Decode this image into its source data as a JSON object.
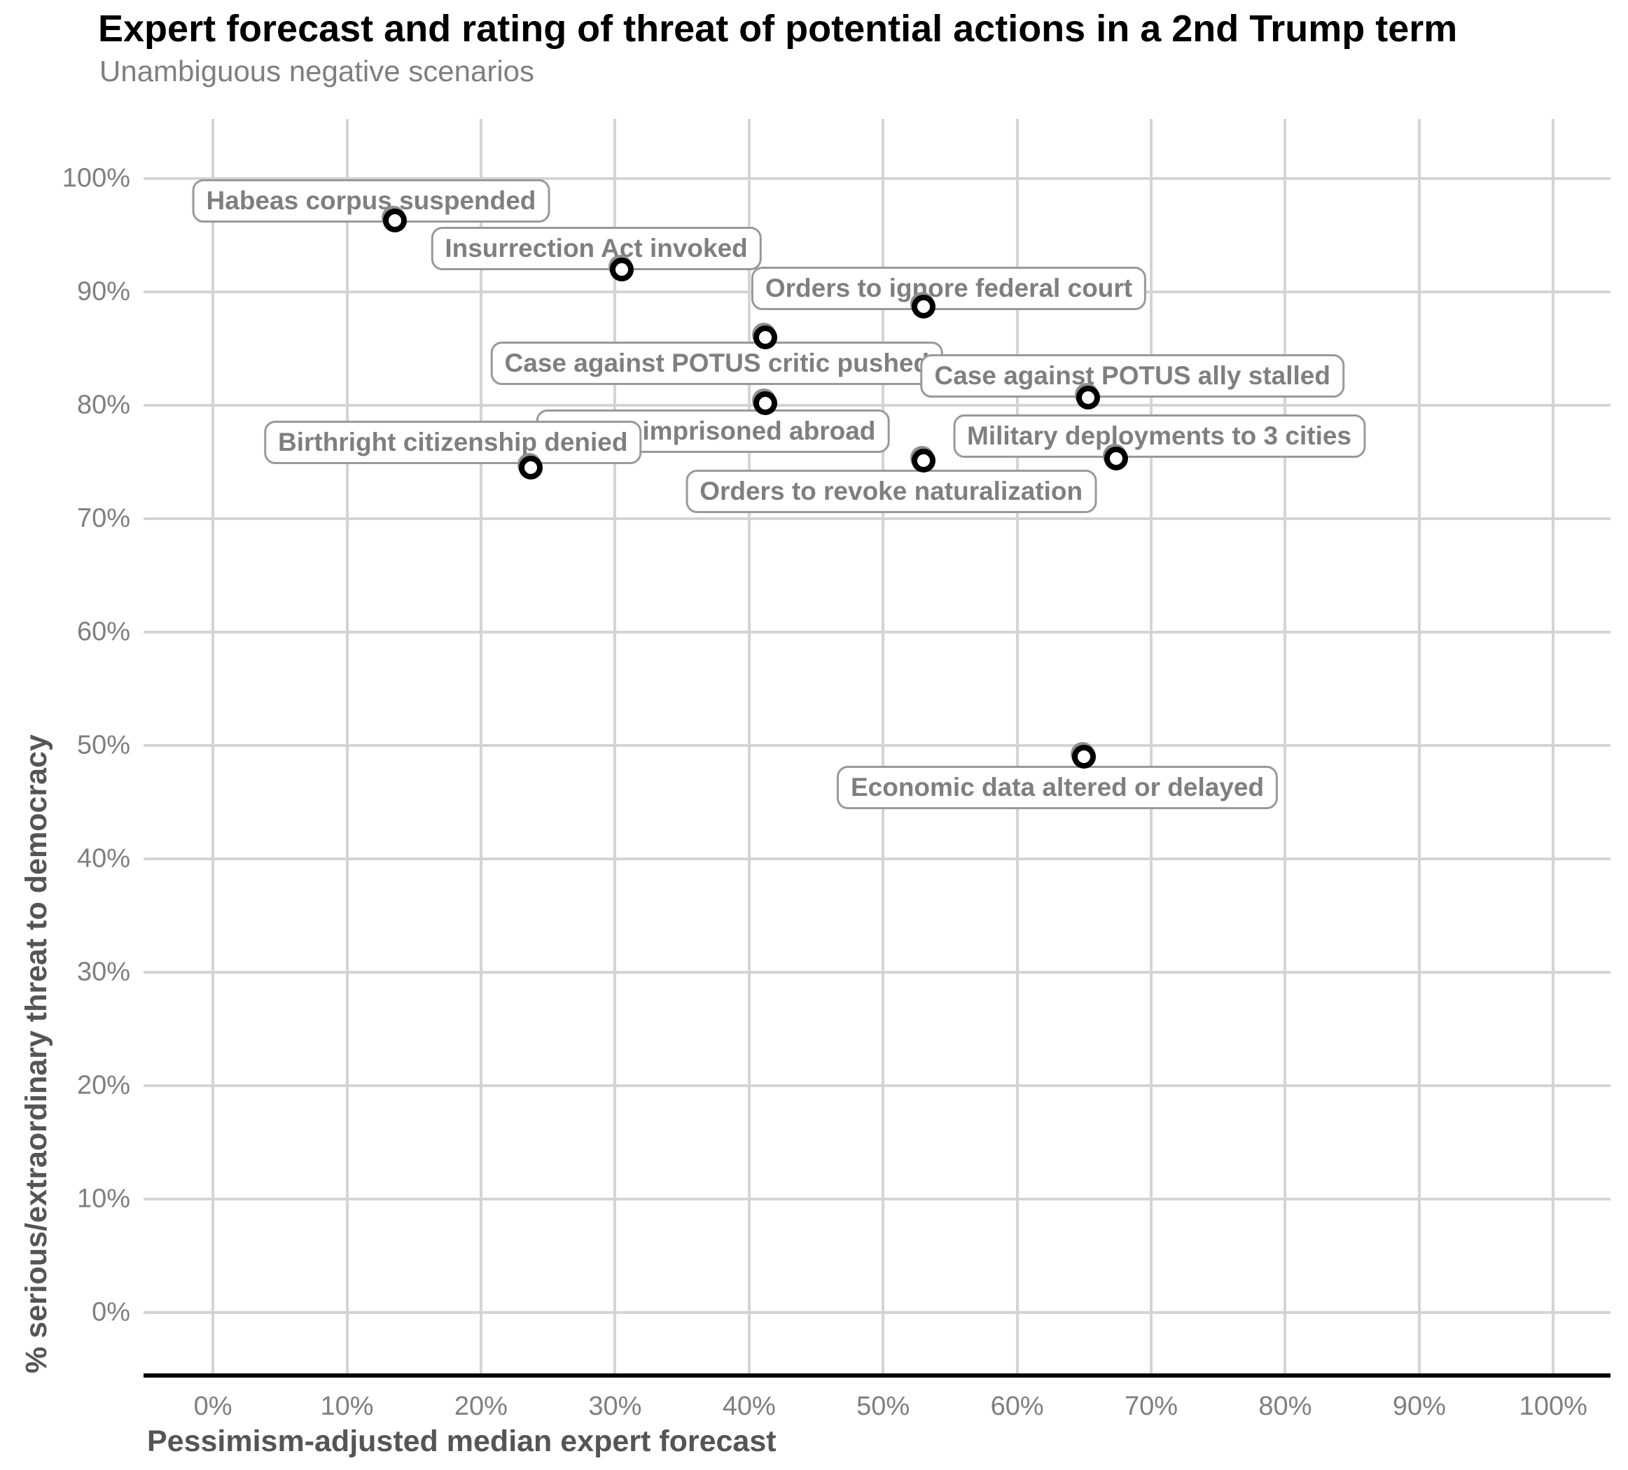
{
  "header": {
    "title": "Expert forecast and rating of threat of potential actions in a 2nd Trump term",
    "subtitle": "Unambiguous negative scenarios"
  },
  "axes": {
    "x": {
      "title": "Pessimism-adjusted median expert forecast",
      "tick_labels": [
        "0%",
        "10%",
        "20%",
        "30%",
        "40%",
        "50%",
        "60%",
        "70%",
        "80%",
        "90%",
        "100%"
      ],
      "tick_values": [
        0,
        10,
        20,
        30,
        40,
        50,
        60,
        70,
        80,
        90,
        100
      ],
      "range": [
        0,
        100
      ]
    },
    "y": {
      "title": "% serious/extraordinary threat to democracy",
      "tick_labels": [
        "0%",
        "10%",
        "20%",
        "30%",
        "40%",
        "50%",
        "60%",
        "70%",
        "80%",
        "90%",
        "100%"
      ],
      "tick_values": [
        0,
        10,
        20,
        30,
        40,
        50,
        60,
        70,
        80,
        90,
        100
      ],
      "range": [
        0,
        100
      ]
    }
  },
  "chart_data": {
    "type": "scatter",
    "title": "Expert forecast and rating of threat of potential actions in a 2nd Trump term",
    "subtitle": "Unambiguous negative scenarios",
    "xlabel": "Pessimism-adjusted median expert forecast",
    "ylabel": "% serious/extraordinary threat to democracy",
    "xlim": [
      0,
      100
    ],
    "ylim": [
      0,
      100
    ],
    "grid": true,
    "units": "percent",
    "points": [
      {
        "label": "Habeas corpus suspended",
        "x": 13.6,
        "y": 96.3,
        "label_x": 11.8,
        "label_y": 98.0
      },
      {
        "label": "Insurrection Act invoked",
        "x": 30.5,
        "y": 92.0,
        "label_x": 28.6,
        "label_y": 93.8
      },
      {
        "label": "Orders to ignore federal court",
        "x": 53.0,
        "y": 88.7,
        "label_x": 54.9,
        "label_y": 90.3
      },
      {
        "label": "Case against POTUS critic pushed",
        "x": 41.2,
        "y": 86.0,
        "label_x": 37.6,
        "label_y": 83.7
      },
      {
        "label": "Case against POTUS ally stalled",
        "x": 65.3,
        "y": 80.7,
        "label_x": 68.6,
        "label_y": 82.6
      },
      {
        "label": "Citizen imprisoned abroad",
        "x": 41.2,
        "y": 80.2,
        "label_x": 37.3,
        "label_y": 77.7
      },
      {
        "label": "Military deployments to 3 cities",
        "x": 67.4,
        "y": 75.3,
        "label_x": 70.6,
        "label_y": 77.3
      },
      {
        "label": "Birthright citizenship denied",
        "x": 23.7,
        "y": 74.5,
        "label_x": 17.9,
        "label_y": 76.7
      },
      {
        "label": "Orders to revoke naturalization",
        "x": 53.0,
        "y": 75.1,
        "label_x": 50.6,
        "label_y": 72.4
      },
      {
        "label": "Economic data altered or delayed",
        "x": 65.0,
        "y": 49.0,
        "label_x": 63.0,
        "label_y": 46.3
      }
    ]
  },
  "style": {
    "title_color": "#000000",
    "subtitle_color": "#7f7f7f",
    "tick_color": "#7f7f7f",
    "axis_title_color": "#555555",
    "grid_color": "#d4d4d4",
    "axis_line_color": "#000000",
    "label_text_color": "#7f7f7f",
    "label_border_color": "#999999",
    "point_color": "#000000",
    "point_fill": "#ffffff",
    "point_halo": "#8f8f8f",
    "bg": "#ffffff"
  }
}
